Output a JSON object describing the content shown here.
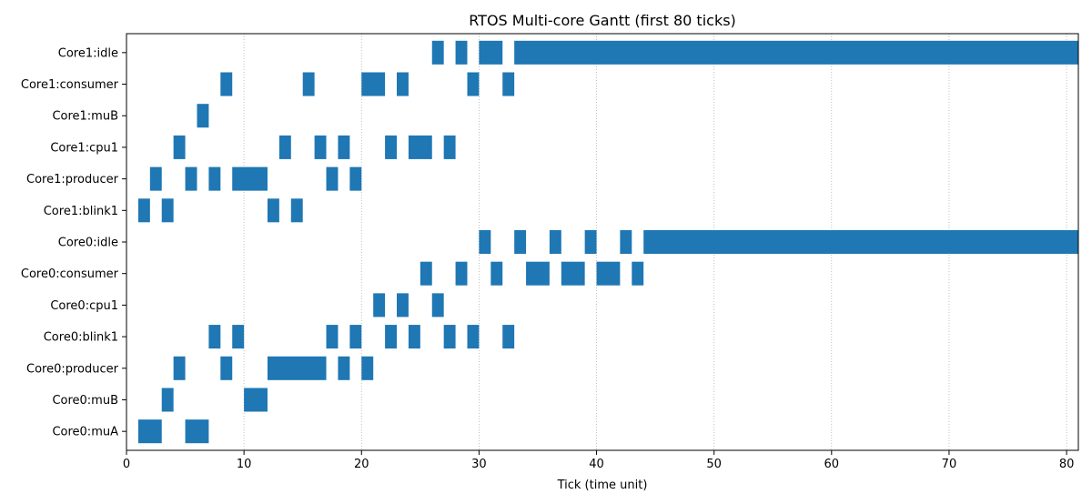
{
  "chart_data": {
    "type": "gantt",
    "title": "RTOS Multi-core Gantt (first 80 ticks)",
    "xlabel": "Tick (time unit)",
    "ylabel": "",
    "xlim": [
      0,
      81
    ],
    "xticks": [
      0,
      10,
      20,
      30,
      40,
      50,
      60,
      70,
      80
    ],
    "grid": "x-dotted",
    "bar_color": "#1f77b4",
    "rows": [
      {
        "label": "Core0:muA",
        "segments": [
          [
            1,
            3
          ],
          [
            5,
            7
          ]
        ]
      },
      {
        "label": "Core0:muB",
        "segments": [
          [
            3,
            4
          ],
          [
            10,
            12
          ]
        ]
      },
      {
        "label": "Core0:producer",
        "segments": [
          [
            4,
            5
          ],
          [
            8,
            9
          ],
          [
            12,
            17
          ],
          [
            18,
            19
          ],
          [
            20,
            21
          ]
        ]
      },
      {
        "label": "Core0:blink1",
        "segments": [
          [
            7,
            8
          ],
          [
            9,
            10
          ],
          [
            17,
            18
          ],
          [
            19,
            20
          ],
          [
            22,
            23
          ],
          [
            24,
            25
          ],
          [
            27,
            28
          ],
          [
            29,
            30
          ],
          [
            32,
            33
          ]
        ]
      },
      {
        "label": "Core0:cpu1",
        "segments": [
          [
            21,
            22
          ],
          [
            23,
            24
          ],
          [
            26,
            27
          ]
        ]
      },
      {
        "label": "Core0:consumer",
        "segments": [
          [
            25,
            26
          ],
          [
            28,
            29
          ],
          [
            31,
            32
          ],
          [
            34,
            36
          ],
          [
            37,
            39
          ],
          [
            40,
            42
          ],
          [
            43,
            44
          ]
        ]
      },
      {
        "label": "Core0:idle",
        "segments": [
          [
            30,
            31
          ],
          [
            33,
            34
          ],
          [
            36,
            37
          ],
          [
            39,
            40
          ],
          [
            42,
            43
          ],
          [
            44,
            81
          ]
        ]
      },
      {
        "label": "Core1:blink1",
        "segments": [
          [
            1,
            2
          ],
          [
            3,
            4
          ],
          [
            12,
            13
          ],
          [
            14,
            15
          ]
        ]
      },
      {
        "label": "Core1:producer",
        "segments": [
          [
            2,
            3
          ],
          [
            5,
            6
          ],
          [
            7,
            8
          ],
          [
            9,
            12
          ],
          [
            17,
            18
          ],
          [
            19,
            20
          ]
        ]
      },
      {
        "label": "Core1:cpu1",
        "segments": [
          [
            4,
            5
          ],
          [
            13,
            14
          ],
          [
            16,
            17
          ],
          [
            18,
            19
          ],
          [
            22,
            23
          ],
          [
            24,
            26
          ],
          [
            27,
            28
          ]
        ]
      },
      {
        "label": "Core1:muB",
        "segments": [
          [
            6,
            7
          ]
        ]
      },
      {
        "label": "Core1:consumer",
        "segments": [
          [
            8,
            9
          ],
          [
            15,
            16
          ],
          [
            20,
            22
          ],
          [
            23,
            24
          ],
          [
            29,
            30
          ],
          [
            32,
            33
          ]
        ]
      },
      {
        "label": "Core1:idle",
        "segments": [
          [
            26,
            27
          ],
          [
            28,
            29
          ],
          [
            30,
            32
          ],
          [
            33,
            81
          ]
        ]
      }
    ]
  }
}
